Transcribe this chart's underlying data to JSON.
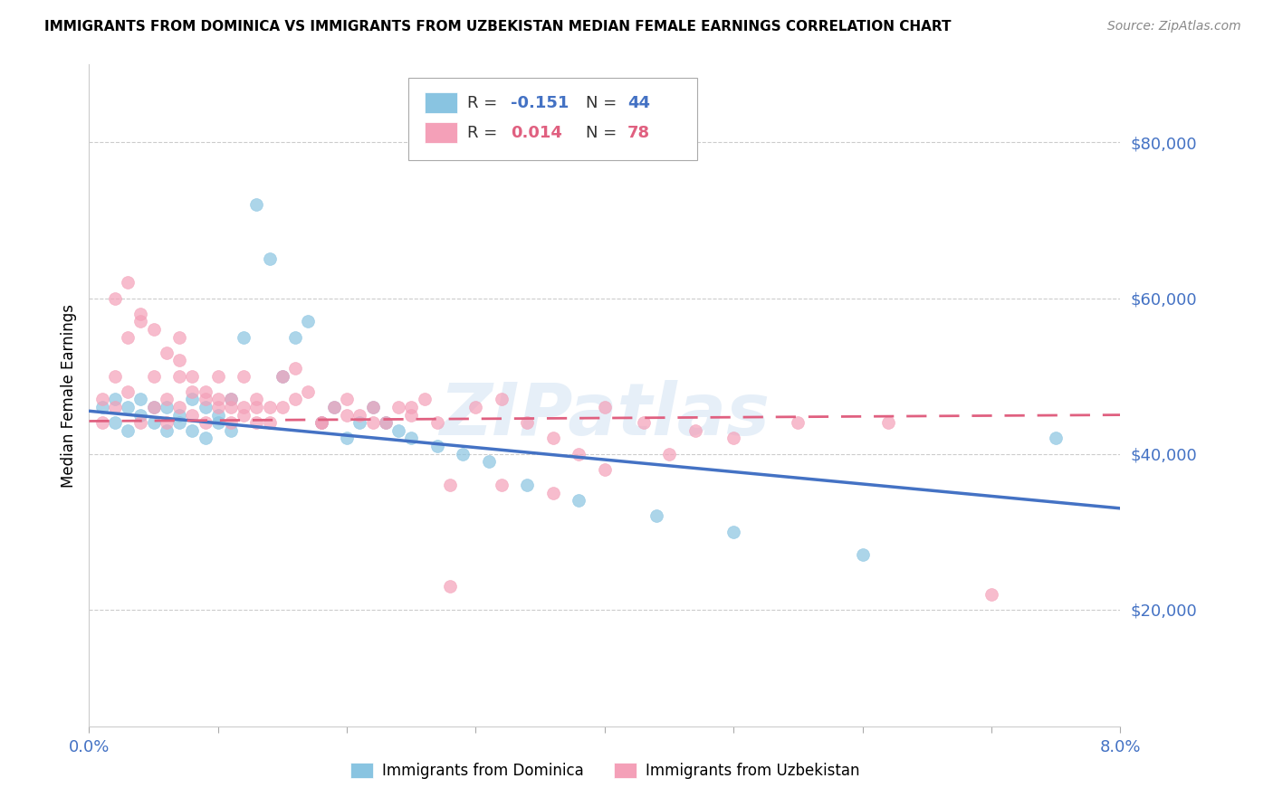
{
  "title": "IMMIGRANTS FROM DOMINICA VS IMMIGRANTS FROM UZBEKISTAN MEDIAN FEMALE EARNINGS CORRELATION CHART",
  "source": "Source: ZipAtlas.com",
  "ylabel": "Median Female Earnings",
  "x_min": 0.0,
  "x_max": 0.08,
  "y_min": 5000,
  "y_max": 90000,
  "yticks": [
    20000,
    40000,
    60000,
    80000
  ],
  "ytick_labels": [
    "$20,000",
    "$40,000",
    "$60,000",
    "$80,000"
  ],
  "watermark": "ZIPatlas",
  "legend_blue_r": "-0.151",
  "legend_blue_n": "44",
  "legend_pink_r": "0.014",
  "legend_pink_n": "78",
  "legend_blue_label": "Immigrants from Dominica",
  "legend_pink_label": "Immigrants from Uzbekistan",
  "blue_color": "#89c4e1",
  "pink_color": "#f4a0b8",
  "line_blue_color": "#4472c4",
  "line_pink_color": "#e06080",
  "axis_color": "#4472c4",
  "blue_scatter_x": [
    0.001,
    0.002,
    0.002,
    0.003,
    0.003,
    0.004,
    0.004,
    0.005,
    0.005,
    0.006,
    0.006,
    0.007,
    0.007,
    0.008,
    0.008,
    0.009,
    0.009,
    0.01,
    0.01,
    0.011,
    0.011,
    0.012,
    0.013,
    0.014,
    0.015,
    0.016,
    0.017,
    0.018,
    0.019,
    0.02,
    0.021,
    0.022,
    0.023,
    0.024,
    0.025,
    0.027,
    0.029,
    0.031,
    0.034,
    0.038,
    0.044,
    0.05,
    0.06,
    0.075
  ],
  "blue_scatter_y": [
    46000,
    44000,
    47000,
    43000,
    46000,
    45000,
    47000,
    44000,
    46000,
    43000,
    46000,
    45000,
    44000,
    47000,
    43000,
    42000,
    46000,
    44000,
    45000,
    43000,
    47000,
    55000,
    72000,
    65000,
    50000,
    55000,
    57000,
    44000,
    46000,
    42000,
    44000,
    46000,
    44000,
    43000,
    42000,
    41000,
    40000,
    39000,
    36000,
    34000,
    32000,
    30000,
    27000,
    42000
  ],
  "pink_scatter_x": [
    0.001,
    0.001,
    0.002,
    0.002,
    0.003,
    0.003,
    0.004,
    0.004,
    0.005,
    0.005,
    0.006,
    0.006,
    0.007,
    0.007,
    0.007,
    0.008,
    0.008,
    0.009,
    0.009,
    0.01,
    0.01,
    0.011,
    0.011,
    0.012,
    0.012,
    0.013,
    0.013,
    0.014,
    0.015,
    0.016,
    0.017,
    0.018,
    0.019,
    0.02,
    0.021,
    0.022,
    0.023,
    0.024,
    0.025,
    0.026,
    0.027,
    0.028,
    0.03,
    0.032,
    0.034,
    0.036,
    0.038,
    0.04,
    0.043,
    0.047,
    0.002,
    0.003,
    0.004,
    0.005,
    0.006,
    0.007,
    0.008,
    0.009,
    0.01,
    0.011,
    0.012,
    0.013,
    0.014,
    0.015,
    0.016,
    0.018,
    0.02,
    0.022,
    0.025,
    0.028,
    0.032,
    0.036,
    0.04,
    0.045,
    0.05,
    0.055,
    0.062,
    0.07
  ],
  "pink_scatter_y": [
    44000,
    47000,
    46000,
    50000,
    48000,
    55000,
    44000,
    57000,
    46000,
    50000,
    47000,
    44000,
    46000,
    50000,
    55000,
    45000,
    48000,
    47000,
    44000,
    46000,
    50000,
    47000,
    44000,
    46000,
    50000,
    47000,
    44000,
    46000,
    50000,
    51000,
    48000,
    44000,
    46000,
    47000,
    45000,
    46000,
    44000,
    46000,
    45000,
    47000,
    44000,
    36000,
    46000,
    47000,
    44000,
    42000,
    40000,
    46000,
    44000,
    43000,
    60000,
    62000,
    58000,
    56000,
    53000,
    52000,
    50000,
    48000,
    47000,
    46000,
    45000,
    46000,
    44000,
    46000,
    47000,
    44000,
    45000,
    44000,
    46000,
    23000,
    36000,
    35000,
    38000,
    40000,
    42000,
    44000,
    44000,
    22000
  ]
}
